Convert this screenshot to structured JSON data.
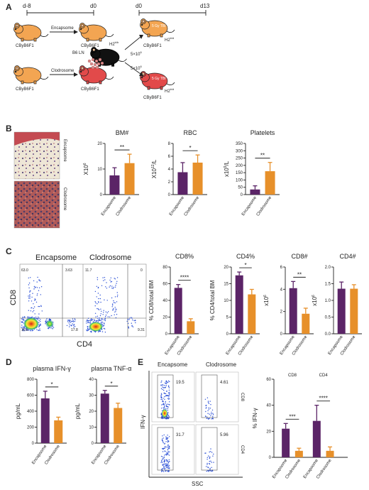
{
  "panels": {
    "A": {
      "label": "A",
      "time_top": {
        "start": "d-8",
        "end": "d0"
      },
      "time_right": {
        "start": "d0",
        "end": "d13"
      },
      "mouse_strain": "CByB6F1",
      "encapsome_arrow": "Encapsome",
      "clodrosome_arrow": "Clodrosome",
      "donor_label": "B6 LN",
      "donor_haplotype": "H2",
      "donor_haplotype_sup": "b/b",
      "recipient_haplotype": "H2",
      "recipient_haplotype_sup": "b/d",
      "cell_dose_base": "5×10",
      "cell_dose_sup": "6",
      "irradiation": "5 Gy TBI"
    },
    "B": {
      "label": "B",
      "histology_labels": [
        "Encapsome",
        "Clodrosome"
      ]
    },
    "C": {
      "label": "C",
      "flow_titles": [
        "Encapsome",
        "Clodrosome"
      ],
      "y_axis": "CD8",
      "x_axis": "CD4",
      "encapsome_quadrants": [
        "63.0",
        "3.63",
        "15.6",
        "17.8"
      ],
      "clodrosome_quadrants": [
        "11.7",
        "0",
        "9.31"
      ]
    },
    "D": {
      "label": "D"
    },
    "E": {
      "label": "E",
      "titles": [
        "Encapsome",
        "Clodrosome"
      ],
      "row_labels": [
        "CD8",
        "CD4"
      ],
      "y_axis": "IFN-γ",
      "x_axis": "SSC",
      "gates": [
        "19.5",
        "4.61",
        "31.7",
        "5.96"
      ]
    }
  },
  "colors": {
    "encapsome": "#5b2467",
    "clodrosome": "#e7902a",
    "mouse": "#f3a552",
    "mouse_depleted": "#e24a4a",
    "donor": "#111111"
  },
  "chart_data": [
    {
      "id": "bm",
      "type": "bar",
      "title": "BM#",
      "ylabel": "X10",
      "ylabel_sup": "6",
      "categories": [
        "Encapsome",
        "Clodrosome"
      ],
      "values": [
        7.5,
        12.3
      ],
      "errors": [
        3,
        3.5
      ],
      "ylim": [
        0,
        20
      ],
      "yticks": [
        "0",
        "10",
        "20"
      ],
      "significance": "**"
    },
    {
      "id": "rbc",
      "type": "bar",
      "title": "RBC",
      "ylabel": "X10",
      "ylabel_sup": "12",
      "ylabel_suffix": "/L",
      "categories": [
        "Encapsome",
        "Clodrosome"
      ],
      "values": [
        3.5,
        5.0
      ],
      "errors": [
        1.5,
        1.2
      ],
      "ylim": [
        0,
        8
      ],
      "yticks": [
        "0",
        "2",
        "4",
        "6",
        "8"
      ],
      "significance": "*"
    },
    {
      "id": "plt",
      "type": "bar",
      "title": "Platelets",
      "ylabel": "x10",
      "ylabel_sup": "9",
      "ylabel_suffix": "/L",
      "categories": [
        "Encapsome",
        "Clodrosome"
      ],
      "values": [
        35,
        160
      ],
      "errors": [
        25,
        60
      ],
      "ylim": [
        0,
        350
      ],
      "yticks": [
        "0",
        "50",
        "100",
        "150",
        "200",
        "250",
        "300",
        "350"
      ],
      "significance": "**"
    },
    {
      "id": "cd8pct",
      "type": "bar",
      "title": "CD8%",
      "ylabel": "% CD8/total BM",
      "categories": [
        "Encapsome",
        "Clodrosome"
      ],
      "values": [
        55,
        15
      ],
      "errors": [
        4,
        3
      ],
      "ylim": [
        0,
        80
      ],
      "yticks": [
        "0",
        "20",
        "40",
        "60",
        "80"
      ],
      "significance": "****"
    },
    {
      "id": "cd4pct",
      "type": "bar",
      "title": "CD4%",
      "ylabel": "% CD4/total BM",
      "categories": [
        "Encapsome",
        "Clodrosome"
      ],
      "values": [
        17.5,
        11.8
      ],
      "errors": [
        1,
        1.5
      ],
      "ylim": [
        0,
        20
      ],
      "yticks": [
        "0",
        "5",
        "10",
        "15",
        "20"
      ],
      "significance": "*"
    },
    {
      "id": "cd8n",
      "type": "bar",
      "title": "CD8#",
      "ylabel": "x10",
      "ylabel_sup": "6",
      "categories": [
        "Encapsome",
        "Clodrosome"
      ],
      "values": [
        4.1,
        1.8
      ],
      "errors": [
        0.6,
        0.5
      ],
      "ylim": [
        0,
        6
      ],
      "yticks": [
        "0",
        "2",
        "4",
        "6"
      ],
      "significance": "**"
    },
    {
      "id": "cd4n",
      "type": "bar",
      "title": "CD4#",
      "ylabel": "x10",
      "ylabel_sup": "6",
      "categories": [
        "Encapsome",
        "Clodrosome"
      ],
      "values": [
        1.35,
        1.35
      ],
      "errors": [
        0.2,
        0.12
      ],
      "ylim": [
        0,
        2.0
      ],
      "yticks": [
        "0.0",
        "0.5",
        "1.0",
        "1.5",
        "2.0"
      ],
      "significance": ""
    },
    {
      "id": "ifn",
      "type": "bar",
      "title": "plasma IFN-γ",
      "ylabel": "pg/mL",
      "categories": [
        "Encapsome",
        "Clodrosome"
      ],
      "values": [
        560,
        285
      ],
      "errors": [
        90,
        40
      ],
      "ylim": [
        0,
        800
      ],
      "yticks": [
        "0",
        "200",
        "400",
        "600",
        "800"
      ],
      "significance": "*"
    },
    {
      "id": "tnf",
      "type": "bar",
      "title": "plasma TNF-α",
      "ylabel": "pg/mL",
      "categories": [
        "Encapsome",
        "Clodrosome"
      ],
      "values": [
        31,
        22
      ],
      "errors": [
        2,
        3
      ],
      "ylim": [
        0,
        40
      ],
      "yticks": [
        "0",
        "10",
        "20",
        "30",
        "40"
      ],
      "significance": "*"
    },
    {
      "id": "ifnpct",
      "type": "bar",
      "title": "",
      "ylabel": "% IFN-γ",
      "categories": [
        "Encapsome",
        "Clodrosome",
        "Encapsome",
        "Clodrosome"
      ],
      "groups": [
        "CD8",
        "CD4"
      ],
      "values": [
        22,
        5,
        28,
        5
      ],
      "errors": [
        4,
        2,
        12,
        3
      ],
      "ylim": [
        0,
        60
      ],
      "yticks": [
        "0",
        "20",
        "40",
        "60"
      ],
      "significance": [
        "***",
        "****"
      ]
    }
  ]
}
